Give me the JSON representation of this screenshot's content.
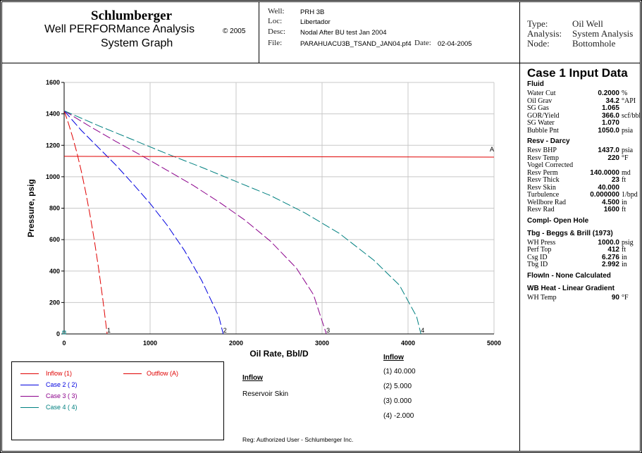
{
  "header": {
    "company": "Schlumberger",
    "product": "Well PERFORMance Analysis",
    "copyright": "© 2005",
    "graph_title": "System Graph",
    "well_label": "Well:",
    "well": "PRH 3B",
    "loc_label": "Loc:",
    "loc": "Libertador",
    "desc_label": "Desc:",
    "desc": "Nodal After BU test Jan 2004",
    "file_label": "File:",
    "file": "PARAHUACU3B_TSAND_JAN04.pf4",
    "date_label": "Date:",
    "date": "02-04-2005",
    "type_label": "Type:",
    "type": "Oil Well",
    "analysis_label": "Analysis:",
    "analysis": "System Analysis",
    "node_label": "Node:",
    "node": "Bottomhole"
  },
  "side_panel": {
    "title": "Case 1 Input Data",
    "fluid_title": "Fluid",
    "fluid": [
      {
        "label": "Water Cut",
        "value": "0.2000",
        "unit": "%"
      },
      {
        "label": "Oil Grav",
        "value": "34.2",
        "unit": "°API"
      },
      {
        "label": "SG Gas",
        "value": "1.065",
        "unit": ""
      },
      {
        "label": "GOR/Yield",
        "value": "366.0",
        "unit": "scf/bbl"
      },
      {
        "label": "SG Water",
        "value": "1.070",
        "unit": ""
      },
      {
        "label": "Bubble Pnt",
        "value": "1050.0",
        "unit": "psia"
      }
    ],
    "resv_title": "Resv - Darcy",
    "resv": [
      {
        "label": "Resv BHP",
        "value": "1437.0",
        "unit": "psia"
      },
      {
        "label": "Resv Temp",
        "value": "220",
        "unit": "°F"
      },
      {
        "label": "Vogel Corrected",
        "value": "",
        "unit": ""
      },
      {
        "label": "Resv Perm",
        "value": "140.0000",
        "unit": "md"
      },
      {
        "label": "Resv Thick",
        "value": "23",
        "unit": "ft"
      },
      {
        "label": "Resv Skin",
        "value": "40.000",
        "unit": ""
      },
      {
        "label": "Turbulence",
        "value": "0.000000",
        "unit": "1/bpd"
      },
      {
        "label": "Wellbore Rad",
        "value": "4.500",
        "unit": "in"
      },
      {
        "label": "Resv Rad",
        "value": "1600",
        "unit": "ft"
      }
    ],
    "compl_title": "Compl- Open Hole",
    "tbg_title": "Tbg - Beggs & Brill (1973)",
    "tbg": [
      {
        "label": "WH Press",
        "value": "1000.0",
        "unit": "psig"
      },
      {
        "label": "Perf Top",
        "value": "412",
        "unit": "ft"
      },
      {
        "label": "Csg ID",
        "value": "6.276",
        "unit": "in"
      },
      {
        "label": "Tbg ID",
        "value": "2.992",
        "unit": "in"
      }
    ],
    "flowin_title": "FlowIn - None Calculated",
    "wb_title": "WB Heat - Linear Gradient",
    "wb": [
      {
        "label": "WH Temp",
        "value": "90",
        "unit": "°F"
      }
    ]
  },
  "legend": {
    "items": [
      {
        "label": "Inflow (1)",
        "color": "#e00000"
      },
      {
        "label": "Case  2 ( 2)",
        "color": "#0000e0"
      },
      {
        "label": "Case  3 ( 3)",
        "color": "#8b008b"
      },
      {
        "label": "Case  4 ( 4)",
        "color": "#008080"
      }
    ],
    "outflow_label": "Outflow (A)",
    "outflow_color": "#e00000",
    "inflow_header": "Inflow",
    "param_name": "Reservoir Skin",
    "inflow_header2": "Inflow",
    "params": [
      "(1)  40.000",
      "(2)  5.000",
      "(3)  0.000",
      "(4)  -2.000"
    ],
    "reg": "Reg:  Authorized User - Schlumberger Inc."
  },
  "chart_data": {
    "type": "line",
    "xlabel": "Oil Rate, Bbl/D",
    "ylabel": "Pressure, psig",
    "xlim": [
      0,
      5000
    ],
    "ylim": [
      0,
      1600
    ],
    "xticks": [
      "0",
      "1000",
      "2000",
      "3000",
      "4000",
      "5000"
    ],
    "yticks": [
      "0",
      "200",
      "400",
      "600",
      "800",
      "1000",
      "1200",
      "1400",
      "1600"
    ],
    "grid": true,
    "series": [
      {
        "name": "Inflow (1)",
        "color": "#e00000",
        "dashed": true,
        "end_label": "1",
        "x": [
          0,
          50,
          100,
          150,
          200,
          250,
          300,
          350,
          400,
          450,
          500
        ],
        "y": [
          1420,
          1340,
          1250,
          1150,
          1035,
          905,
          760,
          600,
          420,
          220,
          0
        ]
      },
      {
        "name": "Case  2 ( 2)",
        "color": "#0000e0",
        "dashed": true,
        "end_label": "2",
        "x": [
          0,
          200,
          400,
          600,
          800,
          1000,
          1200,
          1400,
          1600,
          1800,
          1850
        ],
        "y": [
          1420,
          1295,
          1185,
          1075,
          955,
          830,
          690,
          530,
          340,
          110,
          0
        ]
      },
      {
        "name": "Case  3 ( 3)",
        "color": "#8b008b",
        "dashed": true,
        "end_label": "3",
        "x": [
          0,
          300,
          600,
          900,
          1200,
          1500,
          1800,
          2100,
          2400,
          2700,
          2900,
          3050
        ],
        "y": [
          1420,
          1320,
          1225,
          1135,
          1040,
          945,
          840,
          725,
          590,
          420,
          250,
          0
        ]
      },
      {
        "name": "Case  4 ( 4)",
        "color": "#008080",
        "dashed": true,
        "end_label": "4",
        "x": [
          0,
          400,
          800,
          1200,
          1600,
          2000,
          2400,
          2800,
          3200,
          3600,
          3900,
          4100,
          4150
        ],
        "y": [
          1420,
          1325,
          1235,
          1145,
          1060,
          970,
          880,
          770,
          640,
          470,
          310,
          110,
          0
        ]
      },
      {
        "name": "Outflow (A)",
        "color": "#e00000",
        "dashed": false,
        "end_label": "A",
        "x": [
          0,
          2500,
          5000
        ],
        "y": [
          1130,
          1127,
          1125
        ]
      }
    ]
  }
}
